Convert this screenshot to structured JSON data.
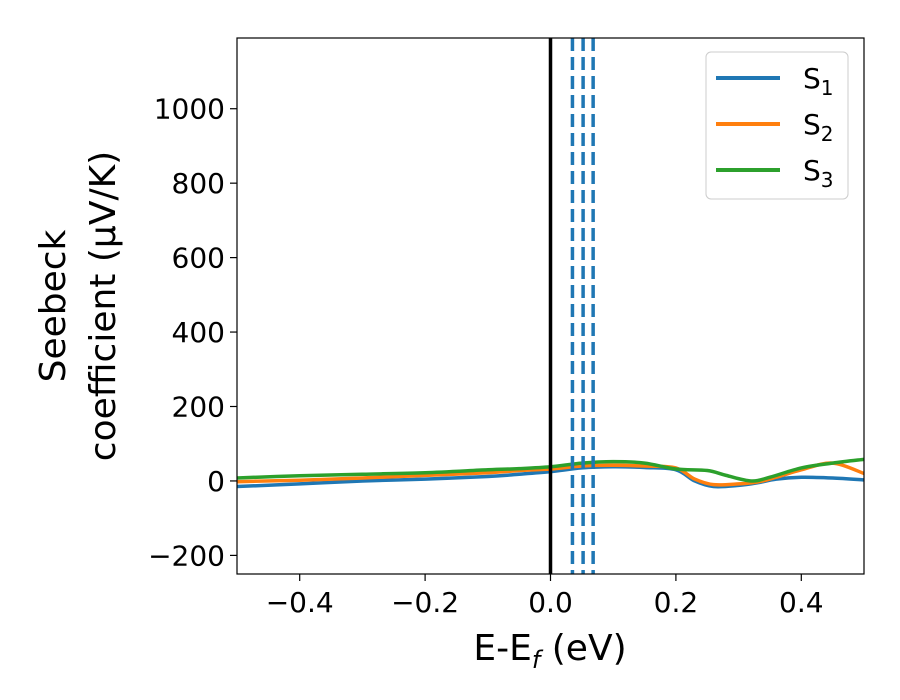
{
  "chart_data": {
    "type": "line",
    "xlabel_main": "E-E",
    "xlabel_sub": "f",
    "xlabel_unit": " (eV)",
    "ylabel_line1": "Seebeck",
    "ylabel_line2": "coefficient  (μV/K)",
    "xlim": [
      -0.5,
      0.5
    ],
    "ylim": [
      -250,
      1190
    ],
    "x_ticks": [
      -0.4,
      -0.2,
      0.0,
      0.2,
      0.4
    ],
    "x_tick_labels": [
      "−0.4",
      "−0.2",
      "0.0",
      "0.2",
      "0.4"
    ],
    "y_ticks": [
      -200,
      0,
      200,
      400,
      600,
      800,
      1000
    ],
    "y_tick_labels": [
      "−200",
      "0",
      "200",
      "400",
      "600",
      "800",
      "1000"
    ],
    "legend_position": "top-right",
    "vlines": [
      {
        "x": 0.0,
        "style": "solid",
        "color": "#000000"
      },
      {
        "x": 0.035,
        "style": "dashed",
        "color": "#1f77b4"
      },
      {
        "x": 0.052,
        "style": "dashed",
        "color": "#1f77b4"
      },
      {
        "x": 0.068,
        "style": "dashed",
        "color": "#1f77b4"
      }
    ],
    "series": [
      {
        "name": "S",
        "sub": "1",
        "color": "#1f77b4",
        "x": [
          -0.5,
          -0.4,
          -0.3,
          -0.2,
          -0.1,
          -0.05,
          0.0,
          0.05,
          0.1,
          0.15,
          0.2,
          0.23,
          0.26,
          0.3,
          0.33,
          0.36,
          0.4,
          0.45,
          0.5
        ],
        "y": [
          -15,
          -8,
          0,
          5,
          12,
          18,
          25,
          35,
          38,
          36,
          30,
          0,
          -15,
          -12,
          -5,
          5,
          10,
          8,
          3
        ]
      },
      {
        "name": "S",
        "sub": "2",
        "color": "#ff7f0e",
        "x": [
          -0.5,
          -0.4,
          -0.3,
          -0.2,
          -0.1,
          -0.05,
          0.0,
          0.05,
          0.1,
          0.15,
          0.2,
          0.23,
          0.26,
          0.3,
          0.33,
          0.36,
          0.4,
          0.45,
          0.5
        ],
        "y": [
          -2,
          2,
          8,
          15,
          22,
          28,
          32,
          40,
          42,
          40,
          35,
          5,
          -10,
          -8,
          -3,
          10,
          30,
          48,
          20
        ]
      },
      {
        "name": "S",
        "sub": "3",
        "color": "#2ca02c",
        "x": [
          -0.5,
          -0.4,
          -0.3,
          -0.2,
          -0.1,
          -0.05,
          0.0,
          0.05,
          0.1,
          0.15,
          0.2,
          0.25,
          0.28,
          0.32,
          0.35,
          0.4,
          0.45,
          0.5
        ],
        "y": [
          8,
          14,
          18,
          22,
          30,
          33,
          38,
          48,
          52,
          48,
          32,
          28,
          15,
          0,
          10,
          35,
          48,
          58
        ]
      }
    ]
  }
}
